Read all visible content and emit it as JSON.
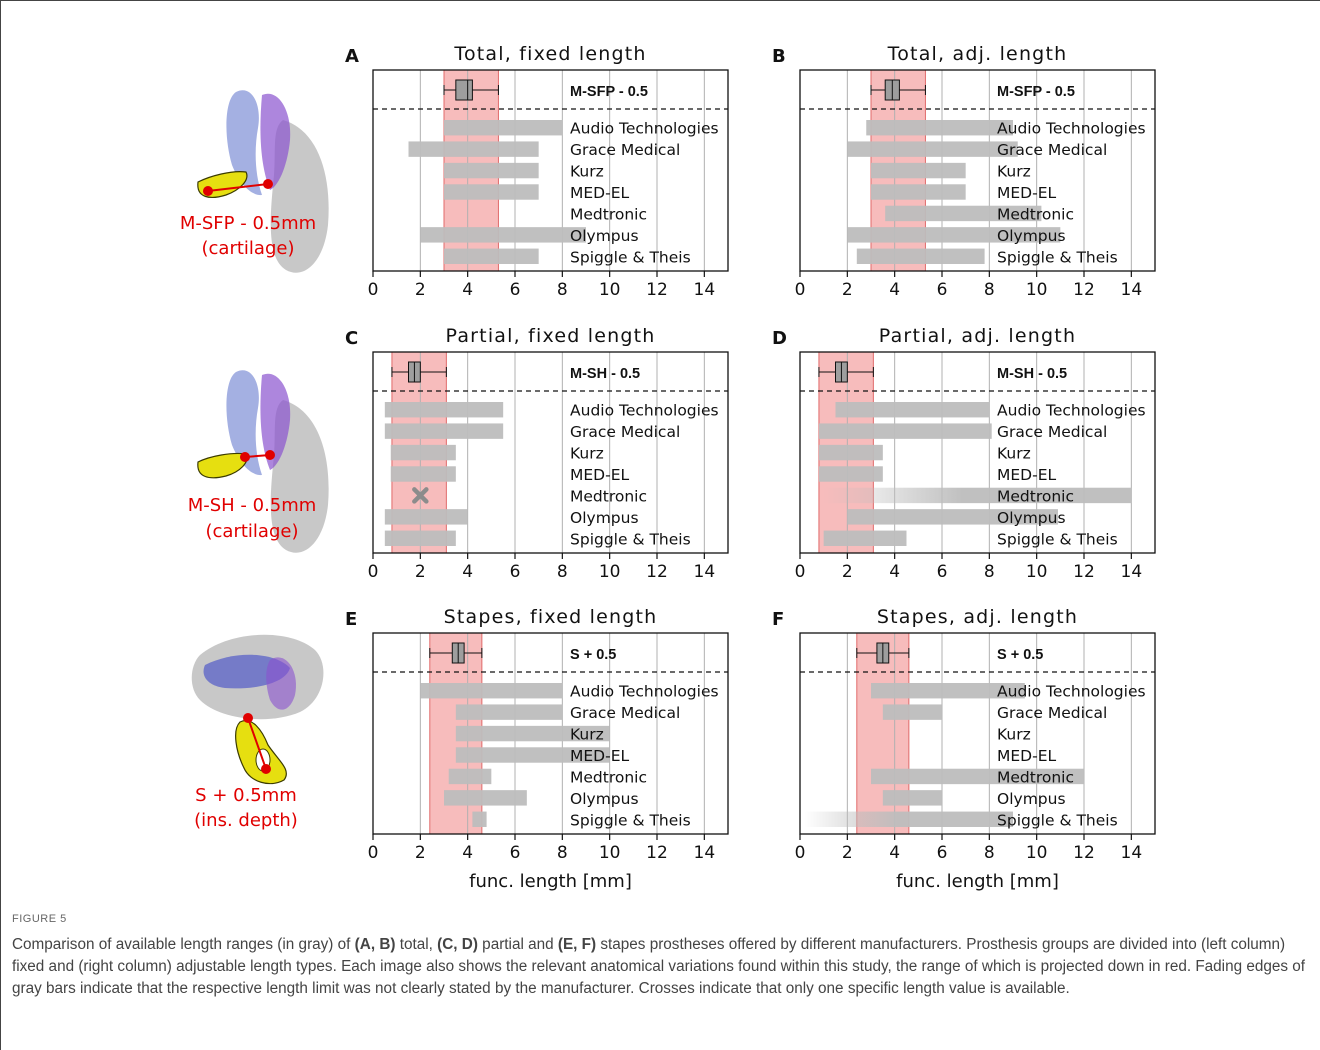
{
  "figure_label": "FIGURE 5",
  "caption": {
    "p1": "Comparison of available length ranges (in gray) of ",
    "b1": "(A, B)",
    "p2": " total, ",
    "b2": "(C, D)",
    "p3": " partial and ",
    "b3": "(E, F)",
    "p4": " stapes prostheses offered by different manufacturers. Prosthesis groups are divided into (left column) fixed and (right column) adjustable length types. Each image also shows the relevant anatomical variations found within this study, the range of which is projected down in red. Fading edges of gray bars indicate that the respective length limit was not clearly stated by the manufacturer. Crosses indicate that only one specific length value is available."
  },
  "anatomy_labels": [
    {
      "line1": "M-SFP - 0.5mm",
      "line2": "(cartilage)"
    },
    {
      "line1": "M-SH - 0.5mm",
      "line2": "(cartilage)"
    },
    {
      "line1": "S + 0.5mm",
      "line2": "(ins. depth)"
    }
  ],
  "colors": {
    "bar_gray": "#bdbdbd",
    "red_band": "#f4a6a6",
    "red_band_edge": "#e06a6a",
    "anatomy_red": "#e00000",
    "grid": "#b0b0b0"
  },
  "chart_data": [
    {
      "panel": "A",
      "title": "Total, fixed length",
      "type": "bar",
      "xlabel": "",
      "xlim": [
        0,
        15
      ],
      "xticks": [
        0,
        2,
        4,
        6,
        8,
        10,
        12,
        14
      ],
      "measurement": "M-SFP - 0.5",
      "box": {
        "whisker_low": 3.0,
        "q1": 3.5,
        "median": 4.0,
        "q3": 4.2,
        "whisker_high": 5.3
      },
      "red_range": [
        3.0,
        5.3
      ],
      "categories": [
        "Audio Technologies",
        "Grace Medical",
        "Kurz",
        "MED-EL",
        "Medtronic",
        "Olympus",
        "Spiggle & Theis"
      ],
      "bars": [
        {
          "start": 3.0,
          "end": 8.0
        },
        {
          "start": 1.5,
          "end": 7.0
        },
        {
          "start": 3.0,
          "end": 7.0
        },
        {
          "start": 3.0,
          "end": 7.0
        },
        null,
        {
          "start": 2.0,
          "end": 9.0
        },
        {
          "start": 3.0,
          "end": 7.0
        }
      ]
    },
    {
      "panel": "B",
      "title": "Total, adj. length",
      "type": "bar",
      "xlabel": "",
      "xlim": [
        0,
        15
      ],
      "xticks": [
        0,
        2,
        4,
        6,
        8,
        10,
        12,
        14
      ],
      "measurement": "M-SFP - 0.5",
      "box": {
        "whisker_low": 3.0,
        "q1": 3.6,
        "median": 3.9,
        "q3": 4.2,
        "whisker_high": 5.3
      },
      "red_range": [
        3.0,
        5.3
      ],
      "categories": [
        "Audio Technologies",
        "Grace Medical",
        "Kurz",
        "MED-EL",
        "Medtronic",
        "Olympus",
        "Spiggle & Theis"
      ],
      "bars": [
        {
          "start": 2.8,
          "end": 9.0
        },
        {
          "start": 2.0,
          "end": 9.2
        },
        {
          "start": 3.0,
          "end": 7.0
        },
        {
          "start": 3.0,
          "end": 7.0
        },
        {
          "start": 3.6,
          "end": 10.2
        },
        {
          "start": 2.0,
          "end": 11.0
        },
        {
          "start": 2.4,
          "end": 7.8
        }
      ]
    },
    {
      "panel": "C",
      "title": "Partial, fixed length",
      "type": "bar",
      "xlabel": "",
      "xlim": [
        0,
        15
      ],
      "xticks": [
        0,
        2,
        4,
        6,
        8,
        10,
        12,
        14
      ],
      "measurement": "M-SH - 0.5",
      "box": {
        "whisker_low": 0.8,
        "q1": 1.5,
        "median": 1.75,
        "q3": 2.0,
        "whisker_high": 3.1
      },
      "red_range": [
        0.8,
        3.1
      ],
      "categories": [
        "Audio Technologies",
        "Grace Medical",
        "Kurz",
        "MED-EL",
        "Medtronic",
        "Olympus",
        "Spiggle & Theis"
      ],
      "bars": [
        {
          "start": 0.5,
          "end": 5.5
        },
        {
          "start": 0.5,
          "end": 5.5
        },
        {
          "start": 0.75,
          "end": 3.5
        },
        {
          "start": 0.75,
          "end": 3.5
        },
        {
          "single": 2.0
        },
        {
          "start": 0.5,
          "end": 4.0
        },
        {
          "start": 0.5,
          "end": 3.5
        }
      ]
    },
    {
      "panel": "D",
      "title": "Partial, adj. length",
      "type": "bar",
      "xlabel": "",
      "xlim": [
        0,
        15
      ],
      "xticks": [
        0,
        2,
        4,
        6,
        8,
        10,
        12,
        14
      ],
      "measurement": "M-SH - 0.5",
      "box": {
        "whisker_low": 0.8,
        "q1": 1.5,
        "median": 1.75,
        "q3": 2.0,
        "whisker_high": 3.1
      },
      "red_range": [
        0.8,
        3.1
      ],
      "categories": [
        "Audio Technologies",
        "Grace Medical",
        "Kurz",
        "MED-EL",
        "Medtronic",
        "Olympus",
        "Spiggle & Theis"
      ],
      "bars": [
        {
          "start": 1.5,
          "end": 8.0
        },
        {
          "start": 0.8,
          "end": 8.1
        },
        {
          "start": 0.8,
          "end": 3.5
        },
        {
          "start": 0.8,
          "end": 3.5
        },
        {
          "start": 1.0,
          "end": 14.0,
          "fade_start": true
        },
        {
          "start": 2.0,
          "end": 10.9
        },
        {
          "start": 1.0,
          "end": 4.5
        }
      ]
    },
    {
      "panel": "E",
      "title": "Stapes, fixed length",
      "type": "bar",
      "xlabel": "func. length [mm]",
      "xlim": [
        0,
        15
      ],
      "xticks": [
        0,
        2,
        4,
        6,
        8,
        10,
        12,
        14
      ],
      "measurement": "S + 0.5",
      "box": {
        "whisker_low": 2.4,
        "q1": 3.35,
        "median": 3.6,
        "q3": 3.85,
        "whisker_high": 4.6
      },
      "red_range": [
        2.4,
        4.6
      ],
      "categories": [
        "Audio Technologies",
        "Grace Medical",
        "Kurz",
        "MED-EL",
        "Medtronic",
        "Olympus",
        "Spiggle & Theis"
      ],
      "bars": [
        {
          "start": 2.0,
          "end": 8.0
        },
        {
          "start": 3.5,
          "end": 8.0
        },
        {
          "start": 3.5,
          "end": 10.0
        },
        {
          "start": 3.5,
          "end": 10.0
        },
        {
          "start": 3.2,
          "end": 5.0
        },
        {
          "start": 3.0,
          "end": 6.5
        },
        {
          "start": 4.2,
          "end": 4.8
        }
      ]
    },
    {
      "panel": "F",
      "title": "Stapes, adj. length",
      "type": "bar",
      "xlabel": "func. length [mm]",
      "xlim": [
        0,
        15
      ],
      "xticks": [
        0,
        2,
        4,
        6,
        8,
        10,
        12,
        14
      ],
      "measurement": "S + 0.5",
      "box": {
        "whisker_low": 2.4,
        "q1": 3.25,
        "median": 3.5,
        "q3": 3.75,
        "whisker_high": 4.6
      },
      "red_range": [
        2.4,
        4.6
      ],
      "categories": [
        "Audio Technologies",
        "Grace Medical",
        "Kurz",
        "MED-EL",
        "Medtronic",
        "Olympus",
        "Spiggle & Theis"
      ],
      "bars": [
        {
          "start": 3.0,
          "end": 9.5
        },
        {
          "start": 3.5,
          "end": 6.0
        },
        null,
        null,
        {
          "start": 3.0,
          "end": 12.0
        },
        {
          "start": 3.5,
          "end": 6.0
        },
        {
          "start": 0.2,
          "end": 9.0,
          "fade_start": true
        }
      ]
    }
  ]
}
